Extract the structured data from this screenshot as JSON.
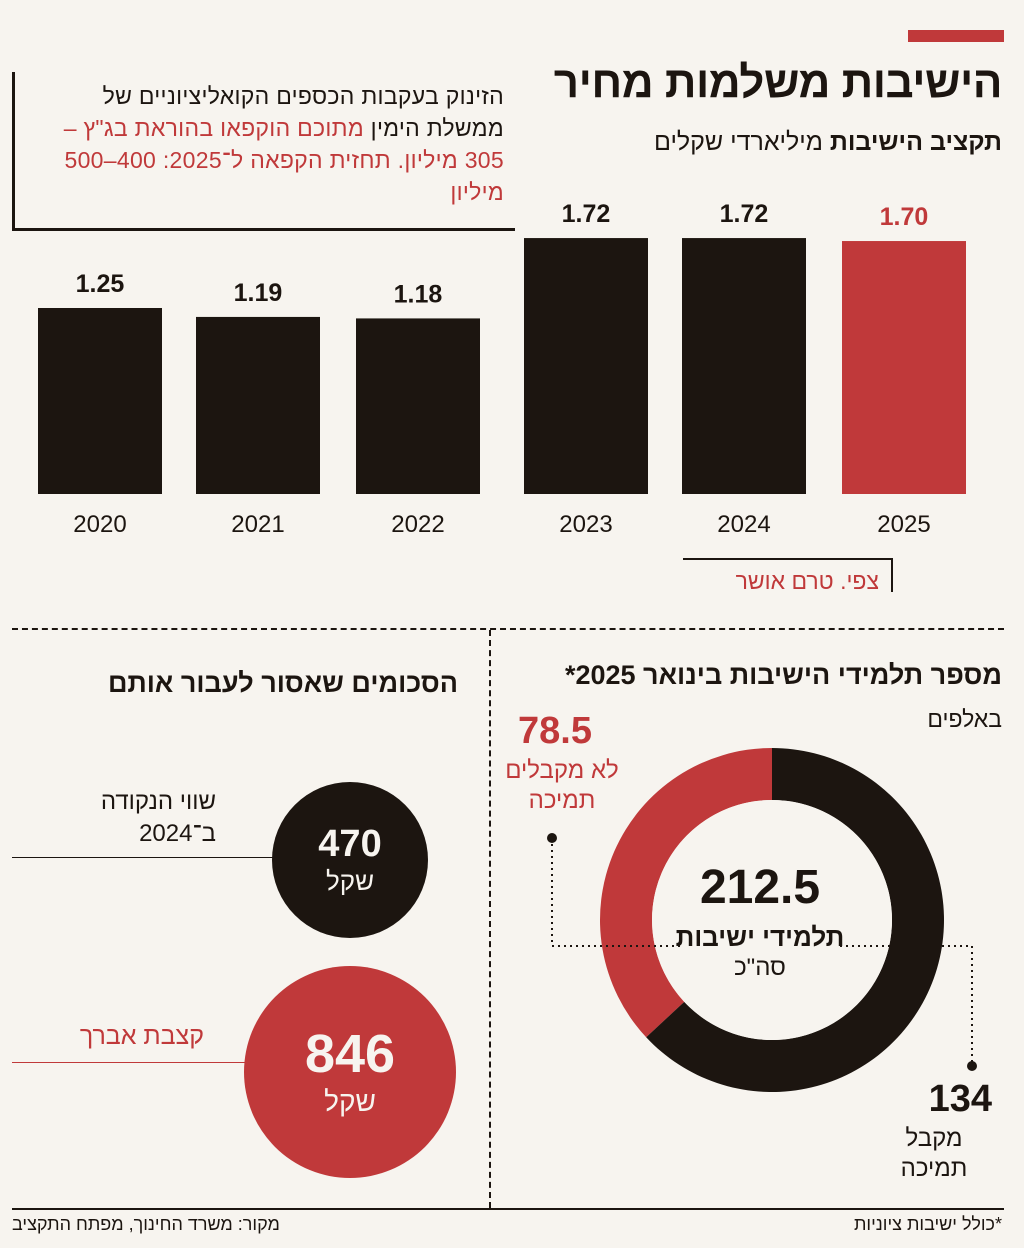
{
  "headline": {
    "title": "הישיבות משלמות מחיר",
    "subtitle_bold": "תקציב הישיבות",
    "subtitle_unit": "מיליארדי שקלים"
  },
  "note": {
    "part1": "הזינוק בעקבות הכספים הקואליציוניים של ממשלת הימין",
    "part2_red": "מתוכם הוקפאו בהוראת בג\"ץ – 305 מיליון. תחזית הקפאה ל־2025: 400–500 מיליון"
  },
  "forecast_label": "צפי. טרם אושר",
  "colors": {
    "black": "#1c1510",
    "red": "#c0393a",
    "background": "#f7f4ef"
  },
  "chart_data": [
    {
      "type": "bar",
      "title": "תקציב הישיבות",
      "ylabel": "מיליארדי שקלים",
      "categories": [
        "2020",
        "2021",
        "2022",
        "2023",
        "2024",
        "2025"
      ],
      "values": [
        1.25,
        1.19,
        1.18,
        1.72,
        1.72,
        1.7
      ],
      "value_labels": [
        "1.25",
        "1.19",
        "1.18",
        "1.72",
        "1.72",
        "1.70"
      ],
      "highlight": [
        "black",
        "black",
        "black",
        "black",
        "black",
        "red"
      ],
      "grid": false
    },
    {
      "type": "pie",
      "title": "מספר תלמידי הישיבות בינואר 2025*",
      "unit": "באלפים",
      "total": "212.5",
      "total_label": "תלמידי ישיבות",
      "total_sub": "סה\"כ",
      "slices": [
        {
          "value": 78.5,
          "label_value": "78.5",
          "label": "לא מקבלים תמיכה",
          "color": "red"
        },
        {
          "value": 134,
          "label_value": "134",
          "label": "מקבל תמיכה",
          "color": "black"
        }
      ]
    }
  ],
  "sums": {
    "title": "הסכומים שאסור לעבור אותם",
    "items": [
      {
        "label": "שווי הנקודה ב־2024",
        "value": "470",
        "unit": "שקל"
      },
      {
        "label": "קצבת אברך",
        "value": "846",
        "unit": "שקל"
      }
    ]
  },
  "footnote": "*כולל ישיבות ציוניות",
  "source": "מקור: משרד החינוך, מפתח התקציב"
}
